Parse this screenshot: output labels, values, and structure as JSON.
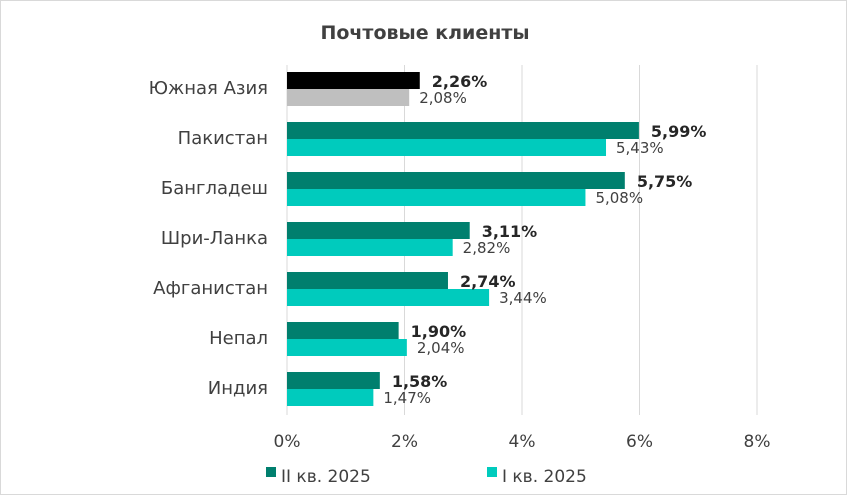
{
  "chart_data": {
    "type": "bar",
    "orientation": "horizontal",
    "title": "Почтовые клиенты",
    "categories": [
      "Южная Азия",
      "Пакистан",
      "Бангладеш",
      "Шри-Ланка",
      "Афганистан",
      "Непал",
      "Индия"
    ],
    "series": [
      {
        "name": "II кв. 2025",
        "values": [
          2.26,
          5.99,
          5.75,
          3.11,
          2.74,
          1.9,
          1.58
        ],
        "labels": [
          "2,26%",
          "5,99%",
          "5,75%",
          "3,11%",
          "2,74%",
          "1,90%",
          "1,58%"
        ],
        "color": "#007f6e",
        "first_color": "#000000"
      },
      {
        "name": "I кв. 2025",
        "values": [
          2.08,
          5.43,
          5.08,
          2.82,
          3.44,
          2.04,
          1.47
        ],
        "labels": [
          "2,08%",
          "5,43%",
          "5,08%",
          "2,82%",
          "3,44%",
          "2,04%",
          "1,47%"
        ],
        "color": "#00cbbd",
        "first_color": "#bfbfbf"
      }
    ],
    "xlim": [
      0,
      8
    ],
    "xticks": [
      0,
      2,
      4,
      6,
      8
    ],
    "xtick_labels": [
      "0%",
      "2%",
      "4%",
      "6%",
      "8%"
    ],
    "grid": "vertical",
    "gridline_color": "#d9d9d9",
    "legend_position": "bottom"
  }
}
